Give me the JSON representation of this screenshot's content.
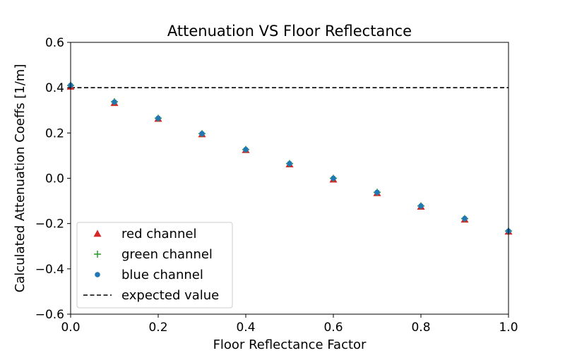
{
  "chart_data": {
    "type": "scatter",
    "title": "Attenuation VS Floor Reflectance",
    "xlabel": "Floor Reflectance Factor",
    "ylabel": "Calculated Attenuation Coeffs [1/m]",
    "xlim": [
      0.0,
      1.0
    ],
    "ylim": [
      -0.6,
      0.6
    ],
    "x_ticks": [
      "0.0",
      "0.2",
      "0.4",
      "0.6",
      "0.8",
      "1.0"
    ],
    "y_ticks": [
      "−0.6",
      "−0.4",
      "−0.2",
      "0.0",
      "0.2",
      "0.4",
      "0.6"
    ],
    "x": [
      0.0,
      0.1,
      0.2,
      0.3,
      0.4,
      0.5,
      0.6,
      0.7,
      0.8,
      0.9,
      1.0
    ],
    "series": [
      {
        "name": "red channel",
        "marker": "triangle",
        "color": "#d62728",
        "values": [
          0.405,
          0.333,
          0.263,
          0.195,
          0.125,
          0.062,
          -0.005,
          -0.065,
          -0.125,
          -0.182,
          -0.235
        ]
      },
      {
        "name": "green channel",
        "marker": "plus",
        "color": "#2ca02c",
        "values": [
          0.41,
          0.338,
          0.265,
          0.197,
          0.127,
          0.065,
          0.0,
          -0.062,
          -0.122,
          -0.178,
          -0.233
        ]
      },
      {
        "name": "blue channel",
        "marker": "circle",
        "color": "#1f77b4",
        "values": [
          0.41,
          0.337,
          0.265,
          0.197,
          0.127,
          0.065,
          0.0,
          -0.062,
          -0.122,
          -0.178,
          -0.233
        ]
      }
    ],
    "reference_line": {
      "name": "expected value",
      "y": 0.4,
      "style": "dashed",
      "color": "#000000"
    },
    "legend": "lower-left",
    "grid": false
  }
}
